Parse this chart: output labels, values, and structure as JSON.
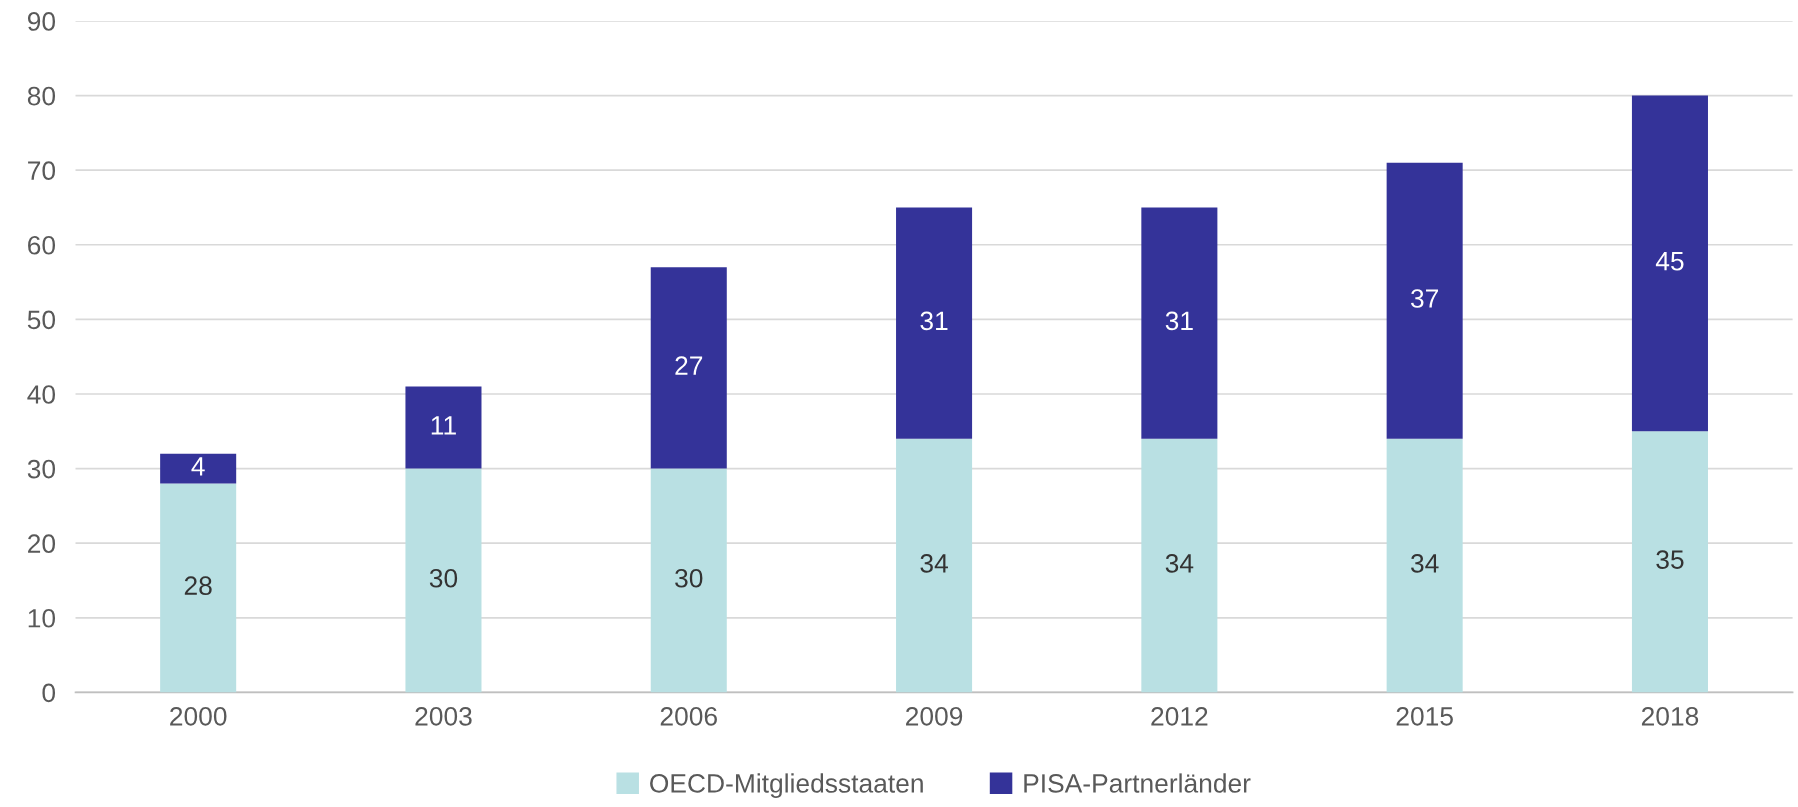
{
  "chart_data": {
    "type": "bar",
    "stacked": true,
    "categories": [
      "2000",
      "2003",
      "2006",
      "2009",
      "2012",
      "2015",
      "2018"
    ],
    "series": [
      {
        "name": "OECD-Mitgliedsstaaten",
        "color": "#b9e0e3",
        "values": [
          28,
          30,
          30,
          34,
          34,
          34,
          35
        ]
      },
      {
        "name": "PISA-Partnerländer",
        "color": "#343399",
        "values": [
          4,
          11,
          27,
          31,
          31,
          37,
          45
        ]
      }
    ],
    "ylim": [
      0,
      90
    ],
    "yticks": [
      0,
      10,
      20,
      30,
      40,
      50,
      60,
      70,
      80,
      90
    ],
    "grid": "y",
    "legend": "bottom",
    "data_labels": true
  }
}
